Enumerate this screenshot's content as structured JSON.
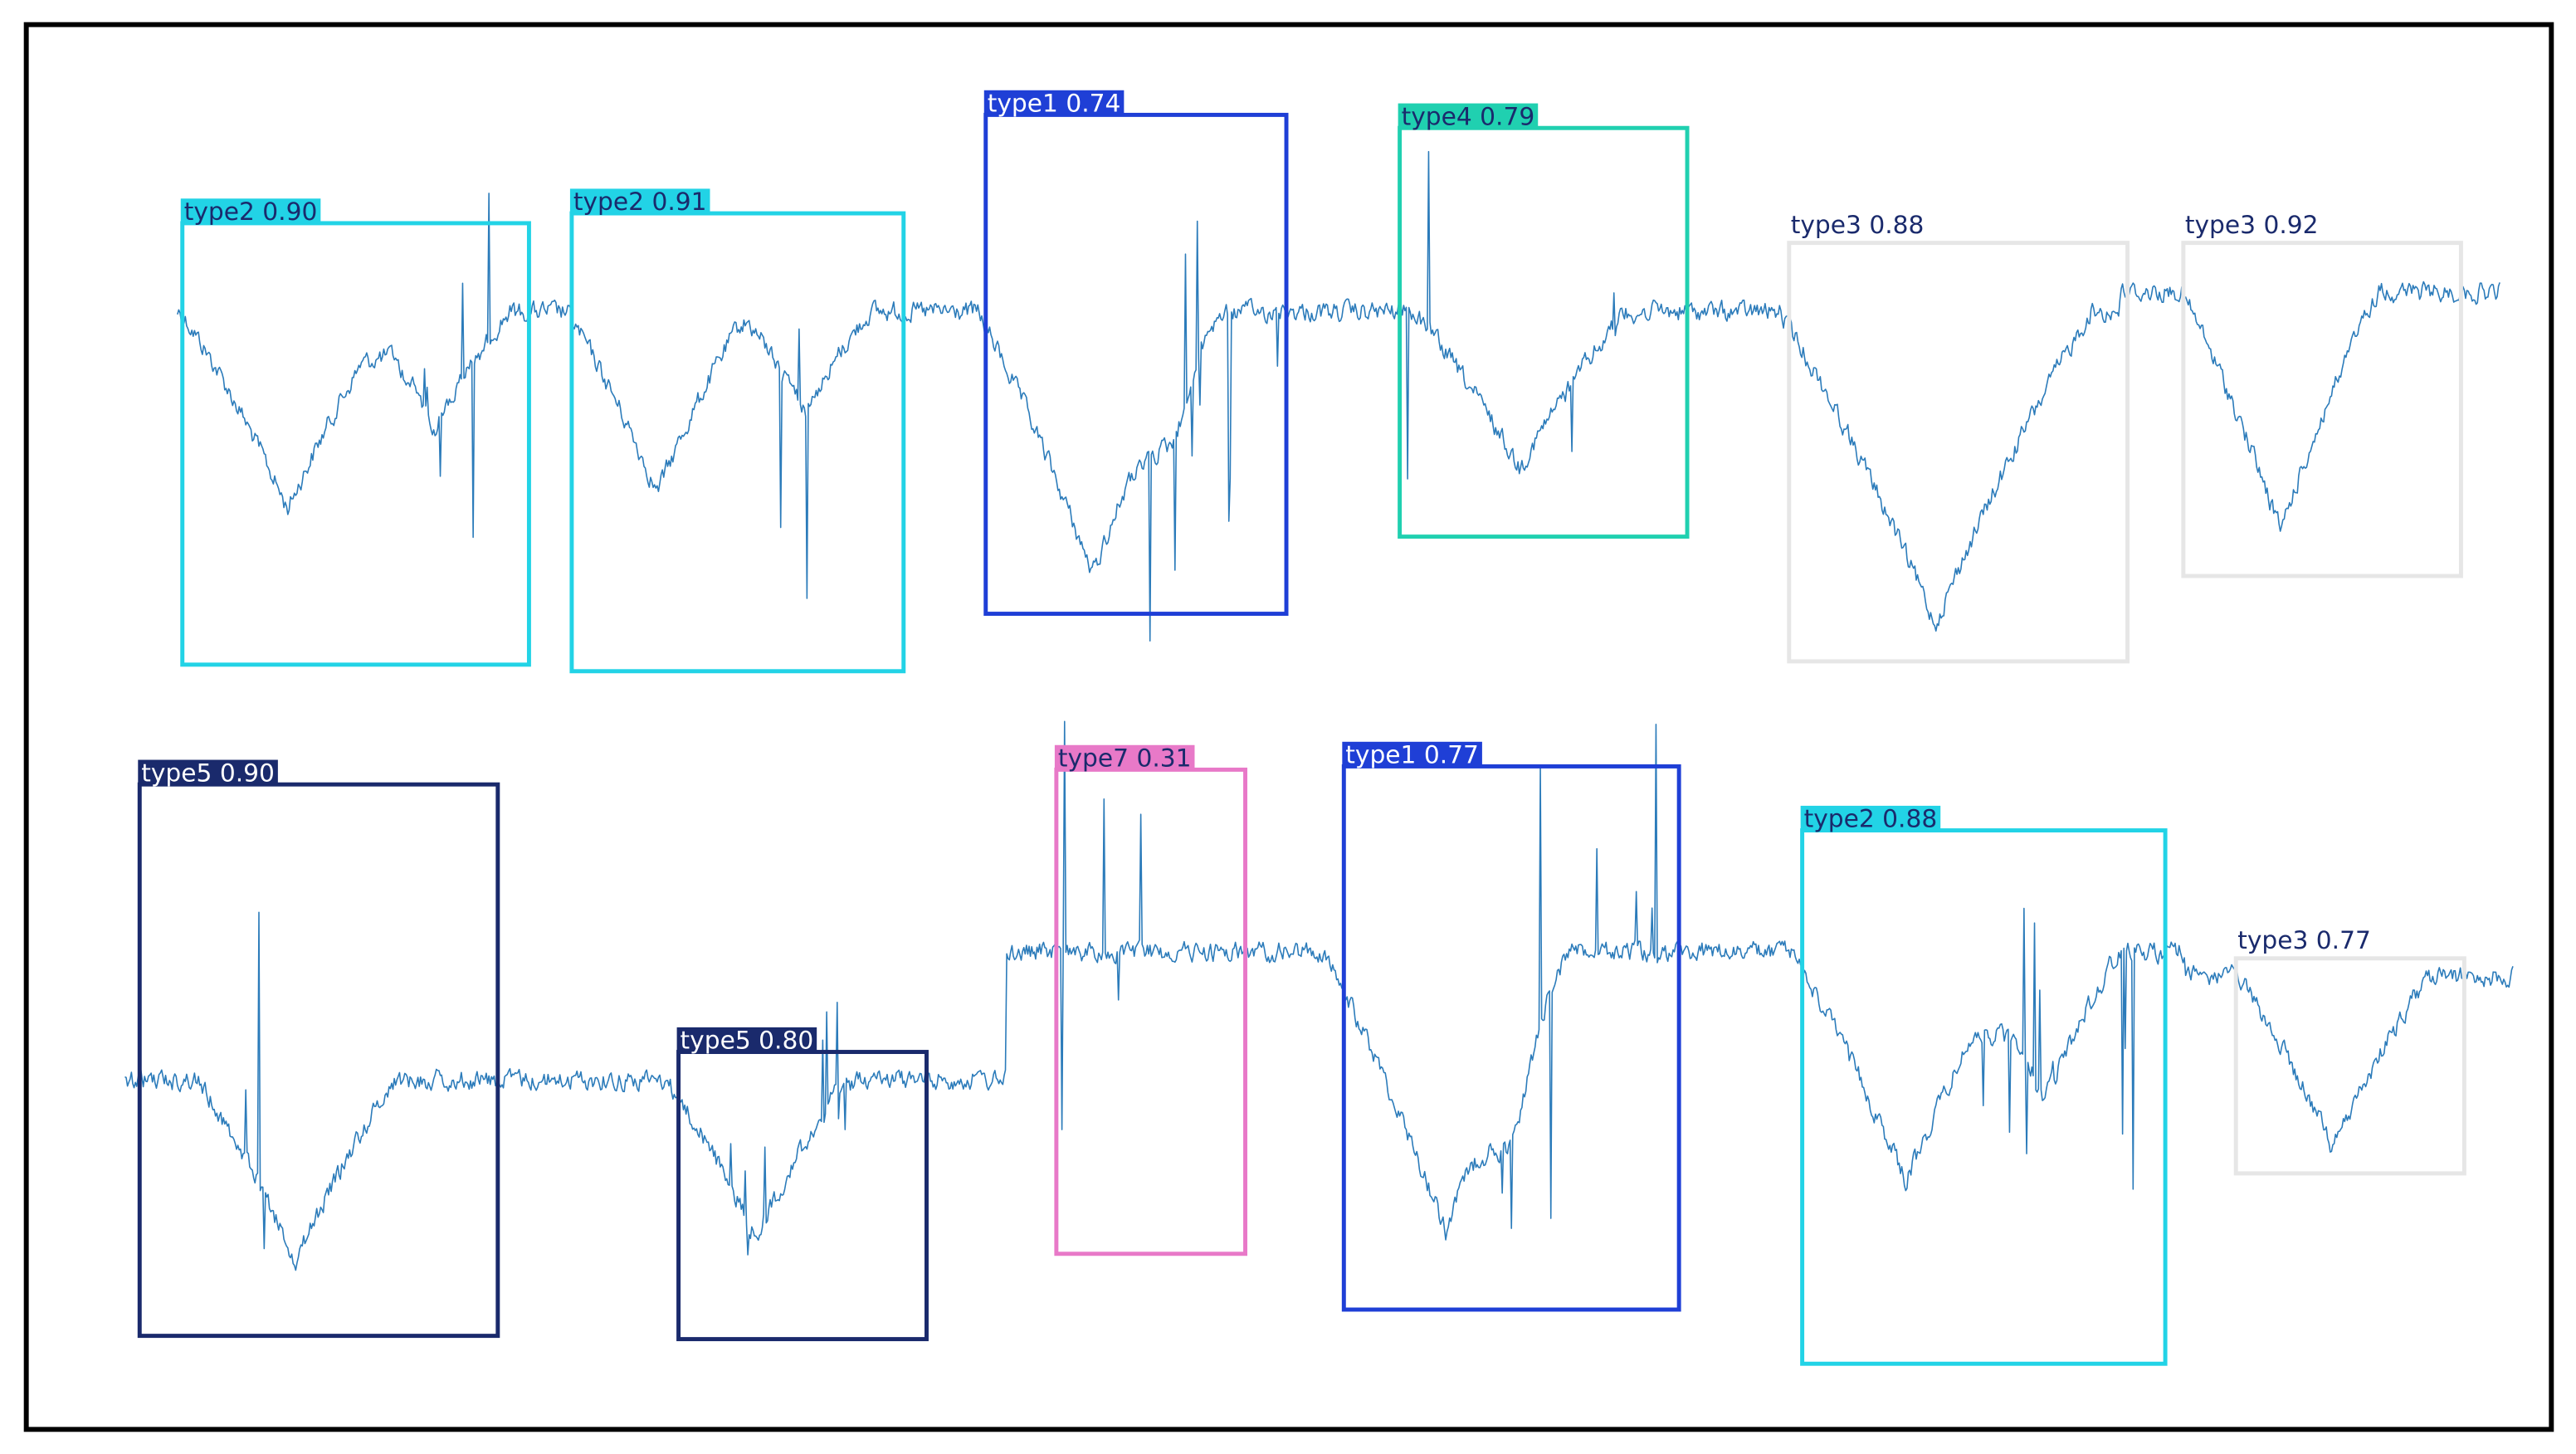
{
  "rows": [
    [
      {
        "label": "type2 0.90"
      },
      {
        "label": "type2 0.91"
      },
      {
        "label": "type1 0.74"
      },
      {
        "label": "type4 0.79"
      },
      {
        "label": "type3 0.88"
      },
      {
        "label": "type3 0.92"
      }
    ],
    [
      {
        "label": "type5 0.90"
      },
      {
        "label": "type5 0.80"
      },
      {
        "label": "type7 0.31"
      },
      {
        "label": "type1 0.77"
      },
      {
        "label": "type2 0.88"
      },
      {
        "label": "type3 0.77"
      }
    ]
  ]
}
